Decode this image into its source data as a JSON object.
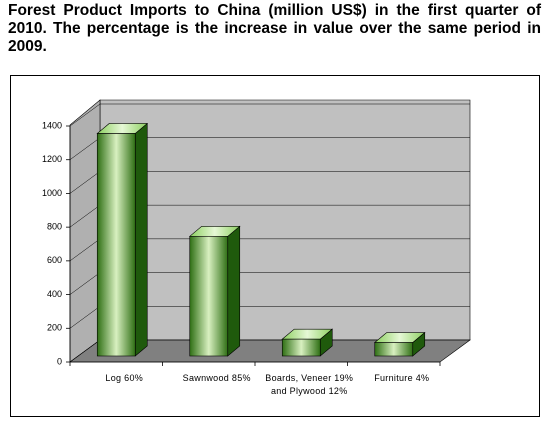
{
  "chart_data": {
    "type": "bar3d",
    "title": "Forest Product Imports to China (million US$) in the first quarter of 2010. The percentage is the increase in value over the same period in 2009.",
    "categories": [
      "Log 60%",
      "Sawnwood 85%",
      "Boards, Veneer 19% and Plywood 12%",
      "Furniture 4%"
    ],
    "values": [
      1320,
      710,
      100,
      80
    ],
    "color": "#3a8a1e",
    "ylim": [
      0,
      1400
    ],
    "yticks": [
      0,
      200,
      400,
      600,
      800,
      1000,
      1200,
      1400
    ],
    "grid": true
  }
}
